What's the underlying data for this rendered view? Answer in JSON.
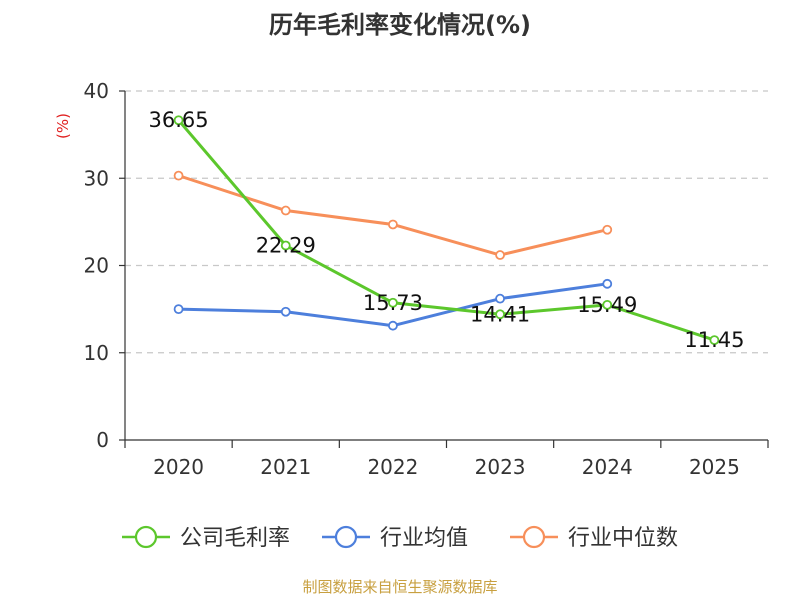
{
  "chart_data": {
    "type": "line",
    "title": "历年毛利率变化情况(%)",
    "ylabel": "(%)",
    "xlabel": "",
    "ylim": [
      0,
      40
    ],
    "yticks": [
      0,
      10,
      20,
      30,
      40
    ],
    "categories": [
      "2020",
      "2021",
      "2022",
      "2023",
      "2024",
      "2025"
    ],
    "grid": true,
    "legend_position": "bottom",
    "series": [
      {
        "name": "公司毛利率",
        "color": "#5cc72c",
        "values": [
          36.65,
          22.29,
          15.73,
          14.41,
          15.49,
          11.45
        ],
        "labels": [
          "36.65",
          "22.29",
          "15.73",
          "14.41",
          "15.49",
          "11.45"
        ]
      },
      {
        "name": "行业均值",
        "color": "#4d7fdc",
        "values": [
          15.0,
          14.7,
          13.1,
          16.2,
          17.9,
          null
        ]
      },
      {
        "name": "行业中位数",
        "color": "#f78f5a",
        "values": [
          30.3,
          26.3,
          24.7,
          21.2,
          24.1,
          null
        ]
      }
    ]
  },
  "ylabel_color": "#e02020",
  "source": {
    "text": "制图数据来自恒生聚源数据库",
    "color": "#c8a040"
  }
}
